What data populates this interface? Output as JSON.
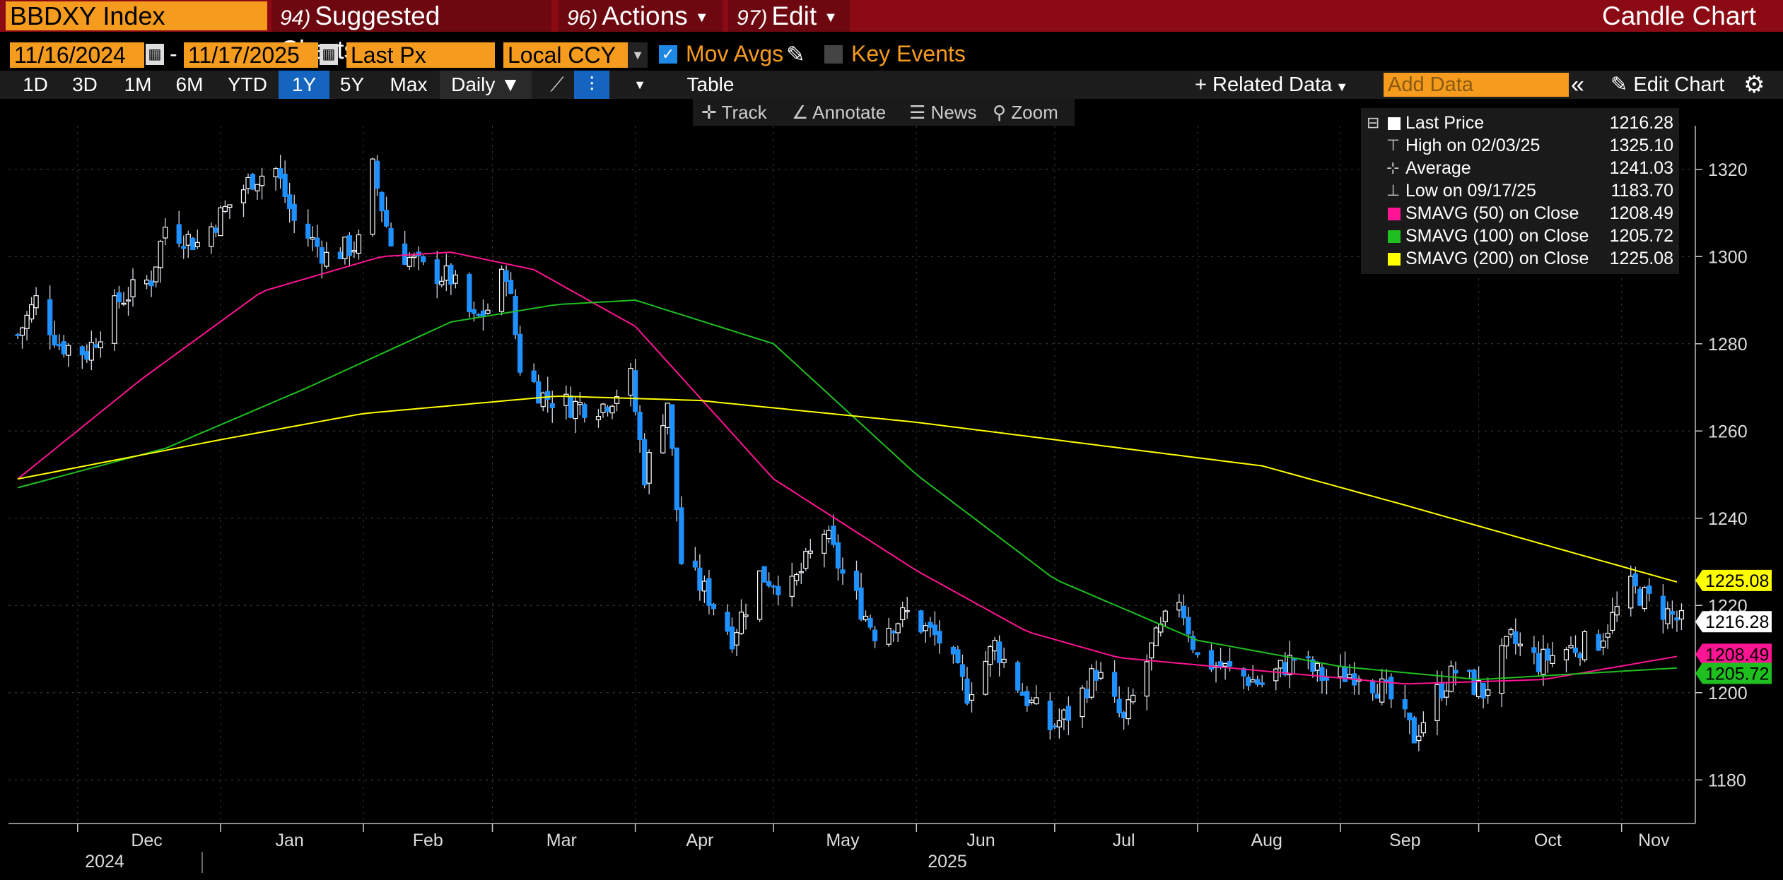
{
  "header": {
    "ticker": "BBDXY Index",
    "menu": [
      {
        "num": "94)",
        "label": "Suggested Charts"
      },
      {
        "num": "96)",
        "label": "Actions"
      },
      {
        "num": "97)",
        "label": "Edit"
      }
    ],
    "chart_type": "Candle Chart"
  },
  "controls": {
    "start_date": "11/16/2024",
    "end_date": "11/17/2025",
    "field": "Last Px",
    "currency": "Local CCY",
    "mov_avgs": "Mov Avgs",
    "key_events": "Key Events"
  },
  "ranges": [
    "1D",
    "3D",
    "1M",
    "6M",
    "YTD",
    "1Y",
    "5Y",
    "Max"
  ],
  "selected_range": "1Y",
  "toolbar": {
    "frequency": "Daily",
    "table": "Table",
    "related_data": "Related Data",
    "add_data_placeholder": "Add Data",
    "edit_chart": "Edit Chart",
    "tools": [
      "Track",
      "Annotate",
      "News",
      "Zoom"
    ]
  },
  "legend": [
    {
      "label": "Last Price",
      "value": "1216.28",
      "color": "#ffffff"
    },
    {
      "label": "High on 02/03/25",
      "value": "1325.10"
    },
    {
      "label": "Average",
      "value": "1241.03"
    },
    {
      "label": "Low on 09/17/25",
      "value": "1183.70"
    },
    {
      "label": "SMAVG (50)  on Close",
      "value": "1208.49",
      "color": "#ff1493"
    },
    {
      "label": "SMAVG (100)  on Close",
      "value": "1205.72",
      "color": "#1fbf1f"
    },
    {
      "label": "SMAVG (200)  on Close",
      "value": "1225.08",
      "color": "#ffff00"
    }
  ],
  "chart_data": {
    "type": "candlestick",
    "x_tick_labels": [
      "Dec",
      "Jan",
      "Feb",
      "Mar",
      "Apr",
      "May",
      "Jun",
      "Jul",
      "Aug",
      "Sep",
      "Oct",
      "Nov"
    ],
    "year_labels": [
      "2024",
      "2025"
    ],
    "y_ticks": [
      1180,
      1200,
      1220,
      1240,
      1260,
      1280,
      1300,
      1320
    ],
    "ylim": [
      1170,
      1330
    ],
    "grid": true,
    "price_close_anchors": [
      [
        "2024-11-18",
        1282
      ],
      [
        "2024-11-22",
        1290
      ],
      [
        "2024-11-27",
        1280
      ],
      [
        "2024-12-03",
        1278
      ],
      [
        "2024-12-10",
        1290
      ],
      [
        "2024-12-17",
        1295
      ],
      [
        "2024-12-20",
        1307
      ],
      [
        "2024-12-27",
        1303
      ],
      [
        "2025-01-03",
        1312
      ],
      [
        "2025-01-08",
        1318
      ],
      [
        "2025-01-13",
        1320
      ],
      [
        "2025-01-17",
        1308
      ],
      [
        "2025-01-24",
        1300
      ],
      [
        "2025-01-31",
        1303
      ],
      [
        "2025-02-03",
        1320
      ],
      [
        "2025-02-07",
        1303
      ],
      [
        "2025-02-14",
        1297
      ],
      [
        "2025-02-20",
        1295
      ],
      [
        "2025-02-25",
        1285
      ],
      [
        "2025-02-28",
        1288
      ],
      [
        "2025-03-04",
        1297
      ],
      [
        "2025-03-07",
        1275
      ],
      [
        "2025-03-12",
        1268
      ],
      [
        "2025-03-18",
        1266
      ],
      [
        "2025-03-25",
        1266
      ],
      [
        "2025-03-31",
        1272
      ],
      [
        "2025-04-03",
        1250
      ],
      [
        "2025-04-08",
        1267
      ],
      [
        "2025-04-11",
        1230
      ],
      [
        "2025-04-17",
        1222
      ],
      [
        "2025-04-22",
        1213
      ],
      [
        "2025-04-28",
        1227
      ],
      [
        "2025-05-05",
        1224
      ],
      [
        "2025-05-12",
        1237
      ],
      [
        "2025-05-16",
        1227
      ],
      [
        "2025-05-23",
        1214
      ],
      [
        "2025-05-30",
        1218
      ],
      [
        "2025-06-06",
        1212
      ],
      [
        "2025-06-12",
        1200
      ],
      [
        "2025-06-18",
        1211
      ],
      [
        "2025-06-24",
        1200
      ],
      [
        "2025-06-30",
        1192
      ],
      [
        "2025-07-04",
        1195
      ],
      [
        "2025-07-10",
        1205
      ],
      [
        "2025-07-16",
        1193
      ],
      [
        "2025-07-22",
        1210
      ],
      [
        "2025-07-28",
        1222
      ],
      [
        "2025-08-01",
        1208
      ],
      [
        "2025-08-08",
        1205
      ],
      [
        "2025-08-15",
        1202
      ],
      [
        "2025-08-22",
        1208
      ],
      [
        "2025-08-29",
        1203
      ],
      [
        "2025-09-05",
        1205
      ],
      [
        "2025-09-11",
        1200
      ],
      [
        "2025-09-17",
        1190
      ],
      [
        "2025-09-22",
        1200
      ],
      [
        "2025-09-26",
        1205
      ],
      [
        "2025-10-02",
        1200
      ],
      [
        "2025-10-08",
        1212
      ],
      [
        "2025-10-14",
        1207
      ],
      [
        "2025-10-20",
        1210
      ],
      [
        "2025-10-27",
        1212
      ],
      [
        "2025-11-03",
        1224
      ],
      [
        "2025-11-10",
        1219
      ],
      [
        "2025-11-14",
        1216
      ]
    ],
    "series": [
      {
        "name": "SMAVG (50)",
        "color": "#ff1493",
        "points": [
          [
            "2024-11-18",
            1249
          ],
          [
            "2024-12-15",
            1272
          ],
          [
            "2025-01-10",
            1292
          ],
          [
            "2025-02-05",
            1300
          ],
          [
            "2025-02-20",
            1301
          ],
          [
            "2025-03-10",
            1297
          ],
          [
            "2025-04-01",
            1284
          ],
          [
            "2025-05-01",
            1249
          ],
          [
            "2025-06-01",
            1228
          ],
          [
            "2025-06-25",
            1214
          ],
          [
            "2025-07-15",
            1208
          ],
          [
            "2025-08-15",
            1205
          ],
          [
            "2025-09-15",
            1202
          ],
          [
            "2025-10-15",
            1203
          ],
          [
            "2025-11-14",
            1208.49
          ]
        ]
      },
      {
        "name": "SMAVG (100)",
        "color": "#1fbf1f",
        "points": [
          [
            "2024-11-18",
            1247
          ],
          [
            "2024-12-20",
            1256
          ],
          [
            "2025-01-20",
            1270
          ],
          [
            "2025-02-20",
            1285
          ],
          [
            "2025-03-15",
            1289
          ],
          [
            "2025-04-01",
            1290
          ],
          [
            "2025-05-01",
            1280
          ],
          [
            "2025-06-01",
            1250
          ],
          [
            "2025-07-01",
            1226
          ],
          [
            "2025-08-01",
            1212
          ],
          [
            "2025-09-01",
            1206
          ],
          [
            "2025-10-01",
            1203
          ],
          [
            "2025-11-14",
            1205.72
          ]
        ]
      },
      {
        "name": "SMAVG (200)",
        "color": "#ffff00",
        "points": [
          [
            "2024-11-18",
            1249
          ],
          [
            "2025-01-01",
            1258
          ],
          [
            "2025-02-01",
            1264
          ],
          [
            "2025-03-15",
            1268
          ],
          [
            "2025-04-15",
            1267
          ],
          [
            "2025-06-01",
            1262
          ],
          [
            "2025-07-01",
            1258
          ],
          [
            "2025-08-15",
            1252
          ],
          [
            "2025-09-15",
            1243
          ],
          [
            "2025-10-15",
            1234
          ],
          [
            "2025-11-14",
            1225.08
          ]
        ]
      }
    ],
    "price_labels": [
      {
        "text": "1225.08",
        "value": 1225.08,
        "color": "#ffff00"
      },
      {
        "text": "1216.28",
        "value": 1216.28,
        "color": "#ffffff"
      },
      {
        "text": "1208.49",
        "value": 1208.49,
        "color": "#ff1493"
      },
      {
        "text": "1205.72",
        "value": 1205.72,
        "color": "#1fbf1f"
      }
    ]
  }
}
